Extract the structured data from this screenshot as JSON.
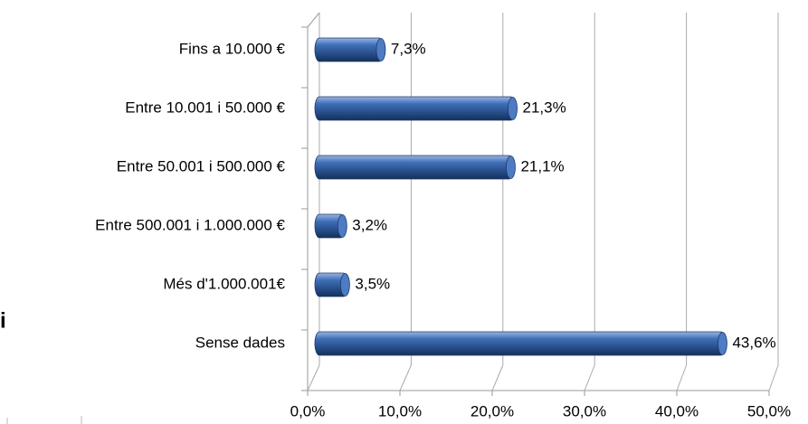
{
  "chart_data": {
    "type": "bar",
    "orientation": "horizontal",
    "categories": [
      "Fins a 10.000 €",
      "Entre 10.001 i 50.000 €",
      "Entre 50.001 i 500.000 €",
      "Entre 500.001 i 1.000.000 €",
      "Més d'1.000.001€",
      "Sense dades"
    ],
    "values": [
      7.3,
      21.3,
      21.1,
      3.2,
      3.5,
      43.6
    ],
    "value_labels": [
      "7,3%",
      "21,3%",
      "21,1%",
      "3,2%",
      "3,5%",
      "43,6%"
    ],
    "color": "#2f5b9e",
    "xlim": [
      0,
      50
    ],
    "xticks": [
      {
        "value": 0,
        "label": "0,0%"
      },
      {
        "value": 10,
        "label": "10,0%"
      },
      {
        "value": 20,
        "label": "20,0%"
      },
      {
        "value": 30,
        "label": "30,0%"
      },
      {
        "value": 40,
        "label": "40,0%"
      },
      {
        "value": 50,
        "label": "50,0%"
      }
    ],
    "grid": true,
    "annotation": "i"
  }
}
